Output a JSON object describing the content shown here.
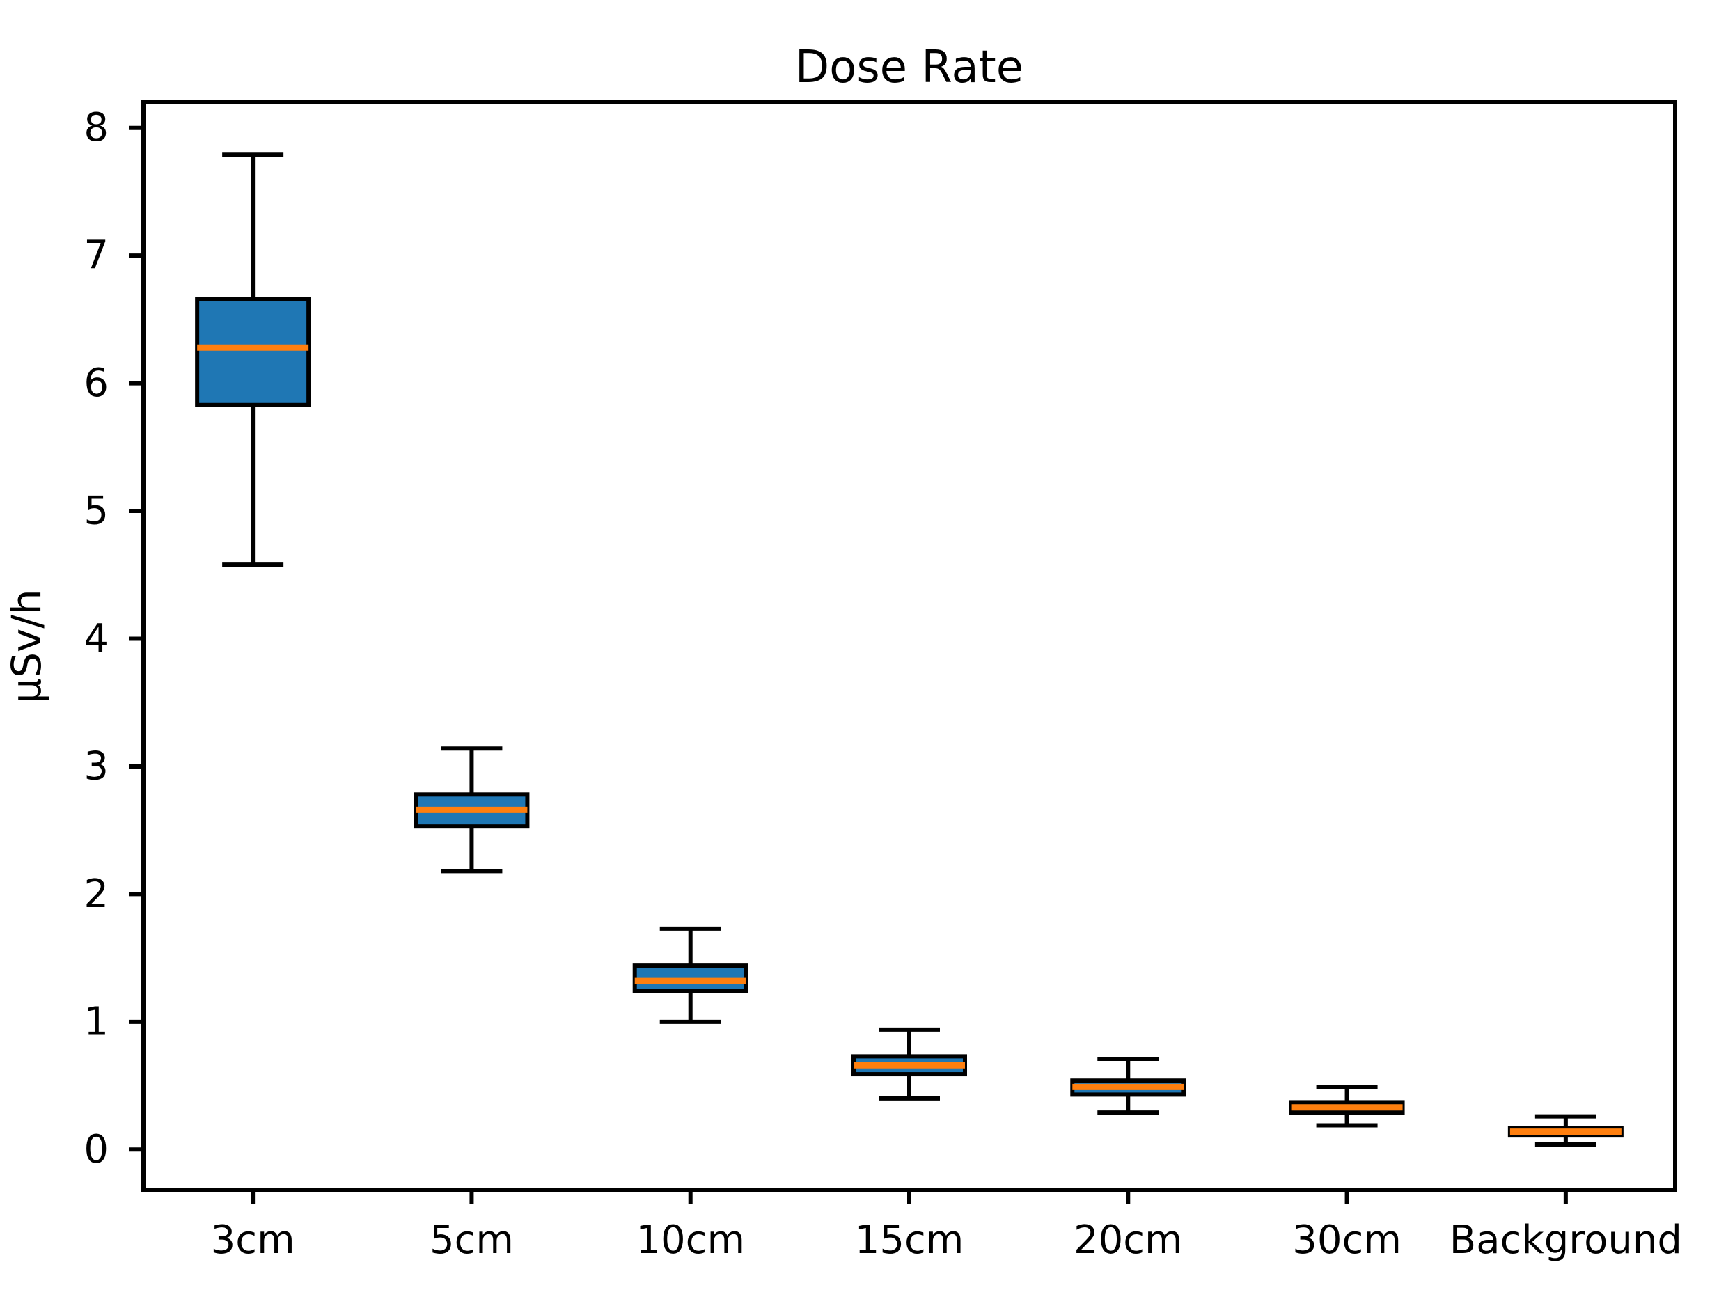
{
  "chart_data": {
    "type": "boxplot",
    "title": "Dose Rate",
    "xlabel": "",
    "ylabel": "μSv/h",
    "categories": [
      "3cm",
      "5cm",
      "10cm",
      "15cm",
      "20cm",
      "30cm",
      "Background"
    ],
    "series": [
      {
        "name": "3cm",
        "whisker_low": 4.58,
        "q1": 5.83,
        "median": 6.28,
        "q3": 6.66,
        "whisker_high": 7.79
      },
      {
        "name": "5cm",
        "whisker_low": 2.18,
        "q1": 2.53,
        "median": 2.66,
        "q3": 2.78,
        "whisker_high": 3.14
      },
      {
        "name": "10cm",
        "whisker_low": 1.0,
        "q1": 1.24,
        "median": 1.32,
        "q3": 1.44,
        "whisker_high": 1.73
      },
      {
        "name": "15cm",
        "whisker_low": 0.4,
        "q1": 0.59,
        "median": 0.66,
        "q3": 0.73,
        "whisker_high": 0.94
      },
      {
        "name": "20cm",
        "whisker_low": 0.29,
        "q1": 0.43,
        "median": 0.49,
        "q3": 0.54,
        "whisker_high": 0.71
      },
      {
        "name": "30cm",
        "whisker_low": 0.19,
        "q1": 0.29,
        "median": 0.33,
        "q3": 0.37,
        "whisker_high": 0.49
      },
      {
        "name": "Background",
        "whisker_low": 0.04,
        "q1": 0.11,
        "median": 0.14,
        "q3": 0.17,
        "whisker_high": 0.26
      }
    ],
    "yticks": [
      0,
      1,
      2,
      3,
      4,
      5,
      6,
      7,
      8
    ],
    "ylim": [
      -0.32,
      8.2
    ],
    "xlim": [
      0.5,
      7.5
    ],
    "grid": false,
    "legend": null,
    "outliers": [],
    "colors": {
      "box_fill": "#1f77b4",
      "median_line": "#ff7f0e",
      "line": "#000000",
      "text": "#000000",
      "background": "#ffffff"
    }
  }
}
